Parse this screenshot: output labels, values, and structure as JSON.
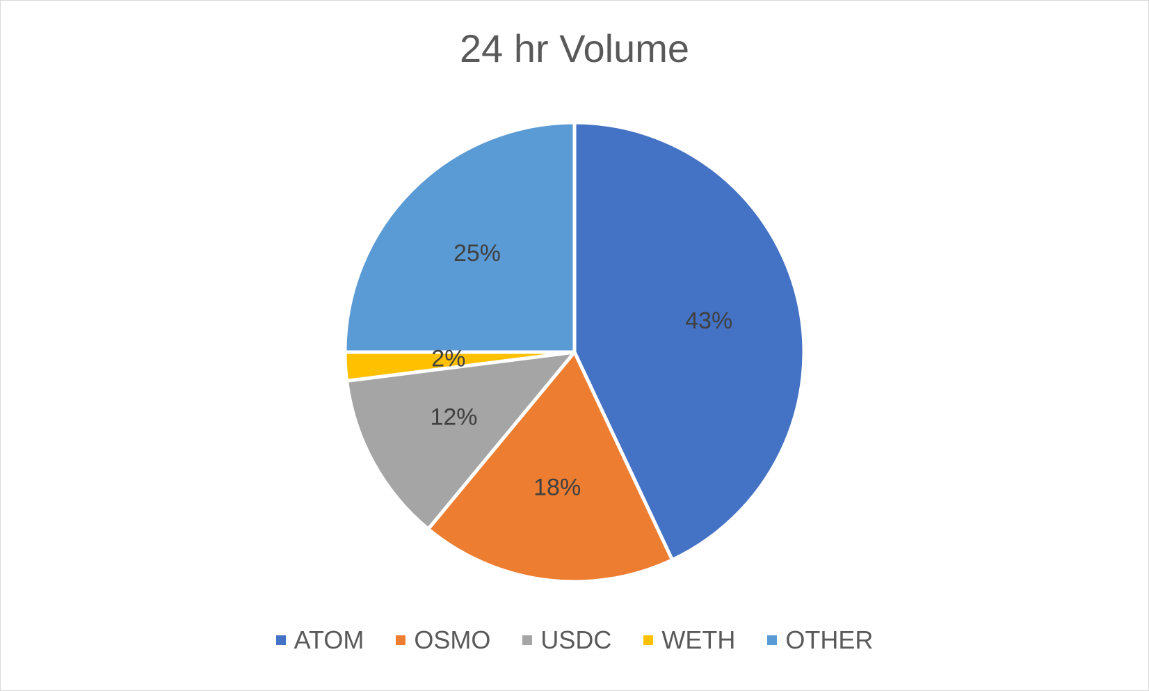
{
  "chart_data": {
    "type": "pie",
    "title": "24 hr Volume",
    "legend_position": "bottom",
    "slices": [
      {
        "name": "ATOM",
        "value": 43,
        "label": "43%",
        "color": "#4472C4"
      },
      {
        "name": "OSMO",
        "value": 18,
        "label": "18%",
        "color": "#ED7D31"
      },
      {
        "name": "USDC",
        "value": 12,
        "label": "12%",
        "color": "#A5A5A5"
      },
      {
        "name": "WETH",
        "value": 2,
        "label": "2%",
        "color": "#FFC000"
      },
      {
        "name": "OTHER",
        "value": 25,
        "label": "25%",
        "color": "#5B9BD5"
      }
    ]
  }
}
